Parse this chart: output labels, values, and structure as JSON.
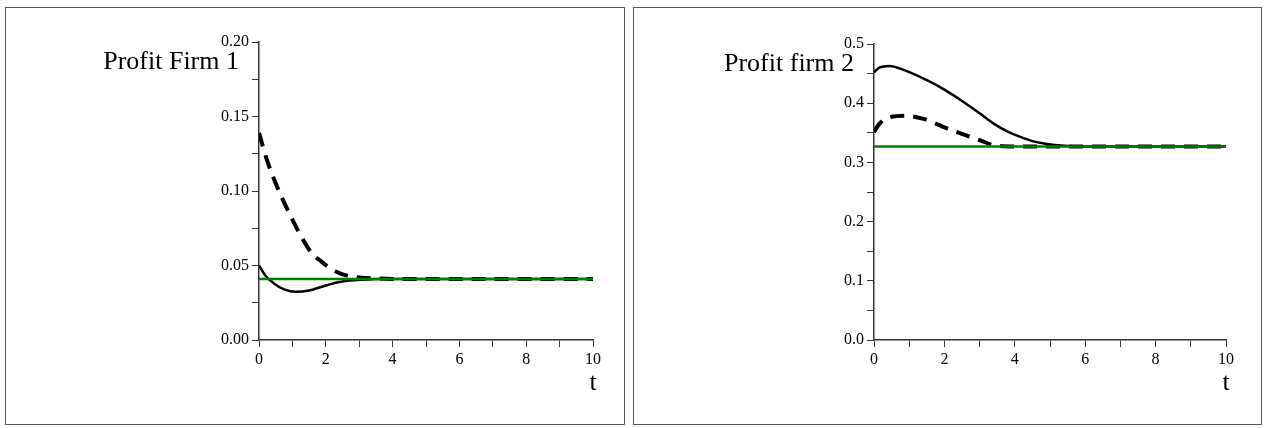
{
  "chart_data": [
    {
      "type": "line",
      "title": "Profit Firm 1",
      "xlabel": "t",
      "xlim": [
        0,
        10
      ],
      "ylim": [
        0,
        0.2
      ],
      "xticks": [
        0,
        {
          "value": 1,
          "label": null
        },
        2,
        {
          "value": 3,
          "label": null
        },
        4,
        {
          "value": 5,
          "label": null
        },
        6,
        {
          "value": 7,
          "label": null
        },
        8,
        {
          "value": 9,
          "label": null
        },
        10
      ],
      "yticks": [
        {
          "value": 0,
          "label": "0.00"
        },
        {
          "value": 0.025,
          "label": null
        },
        0.05,
        {
          "value": 0.075,
          "label": null
        },
        {
          "value": 0.1,
          "label": "0.10"
        },
        {
          "value": 0.125,
          "label": null
        },
        0.15,
        {
          "value": 0.175,
          "label": null
        },
        {
          "value": 0.2,
          "label": "0.20"
        }
      ],
      "grid": false,
      "legend": false,
      "marker": "none",
      "series": [
        {
          "color": "#000000",
          "line_style": "solid",
          "x": [
            0,
            0.2,
            0.45,
            0.75,
            1.1,
            1.5,
            2.03,
            2.5,
            3.1,
            3.6,
            4,
            5,
            6,
            8,
            10
          ],
          "values": [
            0.05,
            0.043,
            0.038,
            0.034,
            0.0323,
            0.0332,
            0.0368,
            0.0392,
            0.0405,
            0.041,
            0.041,
            0.041,
            0.041,
            0.041,
            0.041
          ]
        },
        {
          "color": "#000000",
          "line_style": "dashed",
          "x": [
            0,
            0.25,
            0.55,
            0.8,
            1.04,
            1.3,
            1.59,
            1.85,
            2.08,
            2.3,
            2.58,
            3,
            3.5,
            4,
            5,
            6,
            8,
            10
          ],
          "values": [
            0.139,
            0.12,
            0.1025,
            0.09,
            0.079,
            0.068,
            0.058,
            0.053,
            0.049,
            0.046,
            0.0435,
            0.042,
            0.0413,
            0.041,
            0.041,
            0.041,
            0.041,
            0.041
          ]
        },
        {
          "color": "#008000",
          "line_style": "solid",
          "x": [
            0,
            10
          ],
          "values": [
            0.041,
            0.041
          ]
        }
      ]
    },
    {
      "type": "line",
      "title": "Profit firm 2",
      "xlabel": "t",
      "xlim": [
        0,
        10
      ],
      "ylim": [
        0,
        0.5
      ],
      "xticks": [
        0,
        {
          "value": 1,
          "label": null
        },
        2,
        {
          "value": 3,
          "label": null
        },
        4,
        {
          "value": 5,
          "label": null
        },
        6,
        {
          "value": 7,
          "label": null
        },
        8,
        {
          "value": 9,
          "label": null
        },
        10
      ],
      "yticks": [
        {
          "value": 0,
          "label": "0.0"
        },
        {
          "value": 0.05,
          "label": null
        },
        0.1,
        {
          "value": 0.15,
          "label": null
        },
        0.2,
        {
          "value": 0.25,
          "label": null
        },
        0.3,
        {
          "value": 0.35,
          "label": null
        },
        0.4,
        {
          "value": 0.45,
          "label": null
        },
        0.5
      ],
      "grid": false,
      "legend": false,
      "marker": "none",
      "series": [
        {
          "color": "#000000",
          "line_style": "solid",
          "x": [
            0,
            0.15,
            0.44,
            0.9,
            1.53,
            2,
            2.47,
            3,
            3.41,
            3.8,
            4.16,
            4.5,
            4.91,
            5.4,
            6,
            8,
            10
          ],
          "values": [
            0.452,
            0.46,
            0.463,
            0.455,
            0.438,
            0.423,
            0.405,
            0.383,
            0.365,
            0.352,
            0.343,
            0.336,
            0.331,
            0.328,
            0.327,
            0.327,
            0.327
          ]
        },
        {
          "color": "#000000",
          "line_style": "dashed",
          "x": [
            0,
            0.15,
            0.35,
            0.87,
            1.38,
            2.09,
            2.6,
            3.03,
            3.41,
            4,
            6,
            8,
            10
          ],
          "values": [
            0.351,
            0.365,
            0.374,
            0.379,
            0.374,
            0.357,
            0.346,
            0.337,
            0.329,
            0.327,
            0.327,
            0.327,
            0.327
          ]
        },
        {
          "color": "#008000",
          "line_style": "solid",
          "x": [
            0,
            10
          ],
          "values": [
            0.327,
            0.327
          ]
        }
      ]
    }
  ]
}
